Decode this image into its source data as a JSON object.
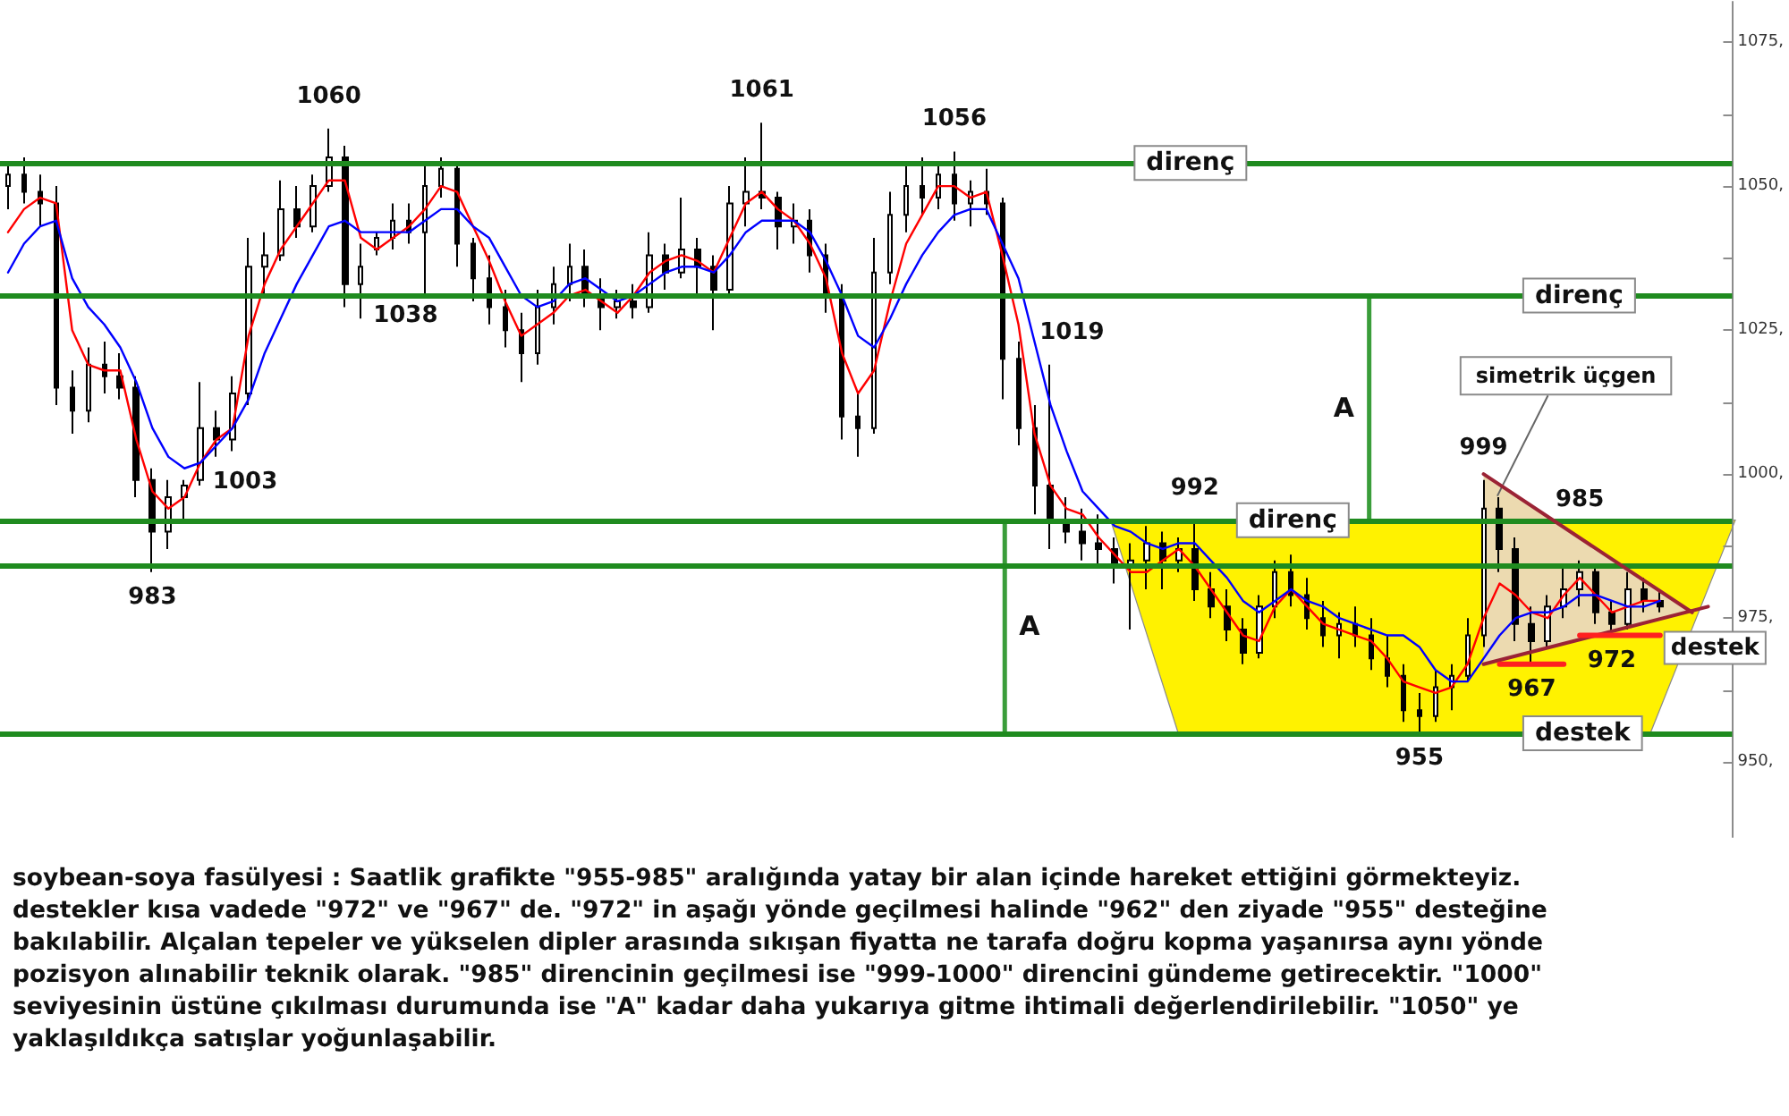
{
  "chart_data": {
    "type": "candlestick",
    "categories": [
      null,
      null,
      null,
      null,
      null,
      null,
      null,
      null,
      null,
      null,
      null,
      null,
      null,
      null,
      null,
      null,
      null,
      null,
      null,
      null,
      null,
      null,
      null,
      null,
      null,
      null,
      null,
      null,
      null,
      null,
      null,
      null,
      null,
      null,
      null,
      null,
      null,
      null,
      null,
      null,
      null,
      null,
      null,
      null,
      null,
      null,
      null,
      null,
      null,
      null,
      null,
      null,
      null,
      null,
      null,
      null,
      null,
      null,
      null,
      null,
      null,
      null,
      null,
      null,
      null,
      null,
      null,
      null,
      null,
      null,
      null,
      null,
      null,
      null,
      null,
      null,
      null,
      null,
      null,
      null,
      null,
      null,
      null,
      null,
      null,
      null,
      null,
      null,
      null,
      null,
      null,
      null,
      null,
      null,
      null,
      null,
      null,
      null,
      null,
      null,
      null,
      null,
      null,
      null,
      null,
      null,
      null,
      null
    ],
    "ohlc": [
      [
        1050,
        1054,
        1046,
        1052
      ],
      [
        1052,
        1055,
        1047,
        1049
      ],
      [
        1049,
        1052,
        1043,
        1047
      ],
      [
        1047,
        1050,
        1012,
        1015
      ],
      [
        1015,
        1018,
        1007,
        1011
      ],
      [
        1011,
        1022,
        1009,
        1019
      ],
      [
        1019,
        1023,
        1014,
        1017
      ],
      [
        1017,
        1021,
        1013,
        1015
      ],
      [
        1015,
        1017,
        996,
        999
      ],
      [
        999,
        1001,
        983,
        990
      ],
      [
        990,
        999,
        987,
        996
      ],
      [
        996,
        999,
        992,
        998
      ],
      [
        999,
        1016,
        998,
        1008
      ],
      [
        1008,
        1011,
        1003,
        1006
      ],
      [
        1006,
        1017,
        1004,
        1014
      ],
      [
        1014,
        1041,
        1012,
        1036
      ],
      [
        1036,
        1042,
        1031,
        1038
      ],
      [
        1038,
        1051,
        1037,
        1046
      ],
      [
        1046,
        1050,
        1041,
        1043
      ],
      [
        1043,
        1052,
        1042,
        1050
      ],
      [
        1050,
        1060,
        1049,
        1055
      ],
      [
        1055,
        1057,
        1029,
        1033
      ],
      [
        1033,
        1040,
        1027,
        1036
      ],
      [
        1039,
        1042,
        1038,
        1041
      ],
      [
        1041,
        1047,
        1039,
        1044
      ],
      [
        1044,
        1047,
        1040,
        1042
      ],
      [
        1042,
        1054,
        1031,
        1050
      ],
      [
        1050,
        1055,
        1048,
        1053
      ],
      [
        1053,
        1054,
        1036,
        1040
      ],
      [
        1040,
        1041,
        1030,
        1034
      ],
      [
        1034,
        1038,
        1026,
        1029
      ],
      [
        1029,
        1032,
        1022,
        1025
      ],
      [
        1025,
        1028,
        1016,
        1021
      ],
      [
        1021,
        1032,
        1019,
        1029
      ],
      [
        1029,
        1036,
        1026,
        1033
      ],
      [
        1033,
        1040,
        1030,
        1036
      ],
      [
        1036,
        1039,
        1029,
        1031
      ],
      [
        1031,
        1034,
        1025,
        1029
      ],
      [
        1029,
        1032,
        1027,
        1030
      ],
      [
        1030,
        1033,
        1027,
        1029
      ],
      [
        1029,
        1042,
        1028,
        1038
      ],
      [
        1038,
        1040,
        1032,
        1035
      ],
      [
        1035,
        1048,
        1034,
        1039
      ],
      [
        1039,
        1041,
        1031,
        1036
      ],
      [
        1036,
        1038,
        1025,
        1032
      ],
      [
        1032,
        1050,
        1031,
        1047
      ],
      [
        1047,
        1055,
        1043,
        1049
      ],
      [
        1049,
        1061,
        1046,
        1048
      ],
      [
        1048,
        1049,
        1039,
        1043
      ],
      [
        1043,
        1047,
        1040,
        1044
      ],
      [
        1044,
        1046,
        1035,
        1038
      ],
      [
        1038,
        1040,
        1028,
        1031
      ],
      [
        1031,
        1033,
        1006,
        1010
      ],
      [
        1010,
        1014,
        1003,
        1008
      ],
      [
        1008,
        1041,
        1007,
        1035
      ],
      [
        1035,
        1049,
        1033,
        1045
      ],
      [
        1045,
        1054,
        1042,
        1050
      ],
      [
        1050,
        1055,
        1045,
        1048
      ],
      [
        1048,
        1054,
        1046,
        1052
      ],
      [
        1052,
        1056,
        1044,
        1047
      ],
      [
        1047,
        1051,
        1043,
        1049
      ],
      [
        1049,
        1053,
        1045,
        1047
      ],
      [
        1047,
        1048,
        1013,
        1020
      ],
      [
        1020,
        1023,
        1005,
        1008
      ],
      [
        1008,
        1012,
        993,
        998
      ],
      [
        998,
        1019,
        987,
        992
      ],
      [
        992,
        996,
        988,
        990
      ],
      [
        990,
        994,
        985,
        988
      ],
      [
        988,
        993,
        984,
        987
      ],
      [
        987,
        989,
        981,
        984
      ],
      [
        984,
        988,
        973,
        985
      ],
      [
        985,
        991,
        980,
        988
      ],
      [
        988,
        990,
        980,
        985
      ],
      [
        985,
        989,
        983,
        987
      ],
      [
        987,
        992,
        978,
        980
      ],
      [
        980,
        983,
        975,
        977
      ],
      [
        977,
        980,
        971,
        973
      ],
      [
        973,
        975,
        967,
        969
      ],
      [
        969,
        979,
        968,
        977
      ],
      [
        977,
        985,
        975,
        983
      ],
      [
        983,
        986,
        977,
        979
      ],
      [
        979,
        982,
        973,
        975
      ],
      [
        975,
        978,
        970,
        972
      ],
      [
        972,
        976,
        968,
        974
      ],
      [
        974,
        977,
        970,
        972
      ],
      [
        972,
        975,
        966,
        968
      ],
      [
        968,
        972,
        963,
        965
      ],
      [
        965,
        967,
        957,
        959
      ],
      [
        959,
        962,
        955,
        958
      ],
      [
        958,
        966,
        957,
        963
      ],
      [
        963,
        967,
        959,
        965
      ],
      [
        965,
        975,
        964,
        972
      ],
      [
        972,
        999,
        970,
        994
      ],
      [
        994,
        996,
        983,
        987
      ],
      [
        987,
        989,
        971,
        974
      ],
      [
        974,
        977,
        967,
        971
      ],
      [
        971,
        979,
        970,
        977
      ],
      [
        977,
        984,
        975,
        980
      ],
      [
        980,
        985,
        977,
        983
      ],
      [
        983,
        984,
        974,
        976
      ],
      [
        976,
        978,
        972,
        974
      ],
      [
        974,
        983,
        973,
        980
      ],
      [
        980,
        982,
        976,
        978
      ],
      [
        978,
        980,
        976,
        977
      ],
      null,
      null,
      null,
      null
    ],
    "color": "#000000",
    "value_labels": [
      null,
      null,
      null,
      null,
      null,
      null,
      null,
      null,
      null,
      "983",
      null,
      null,
      null,
      "1003",
      null,
      null,
      null,
      null,
      null,
      null,
      "1060",
      null,
      null,
      "1038",
      null,
      null,
      null,
      null,
      null,
      null,
      null,
      null,
      null,
      null,
      null,
      null,
      null,
      null,
      null,
      null,
      null,
      null,
      null,
      null,
      null,
      null,
      null,
      "1061",
      null,
      null,
      null,
      null,
      null,
      null,
      null,
      null,
      null,
      null,
      null,
      "1056",
      null,
      null,
      null,
      null,
      null,
      "1019",
      null,
      null,
      null,
      null,
      null,
      null,
      null,
      null,
      "992",
      null,
      null,
      null,
      null,
      null,
      null,
      null,
      null,
      null,
      null,
      null,
      null,
      null,
      "955",
      null,
      null,
      null,
      "999",
      null,
      null,
      "967",
      null,
      null,
      "985",
      null,
      "972",
      null,
      null,
      null,
      null,
      null,
      null,
      null
    ],
    "series": [
      {
        "type": "line",
        "color": "#ff0000",
        "values": [
          1042,
          1046,
          1048,
          1047,
          1025,
          1019,
          1018,
          1018,
          1006,
          997,
          994,
          996,
          1002,
          1006,
          1008,
          1024,
          1033,
          1039,
          1043,
          1047,
          1051,
          1051,
          1041,
          1039,
          1041,
          1043,
          1046,
          1050,
          1049,
          1043,
          1037,
          1030,
          1024,
          1026,
          1028,
          1031,
          1032,
          1030,
          1028,
          1031,
          1035,
          1037,
          1038,
          1037,
          1035,
          1041,
          1047,
          1049,
          1046,
          1044,
          1040,
          1034,
          1021,
          1014,
          1018,
          1030,
          1040,
          1045,
          1050,
          1050,
          1048,
          1049,
          1038,
          1026,
          1007,
          998,
          994,
          993,
          989,
          986,
          983,
          983,
          985,
          987,
          984,
          980,
          976,
          972,
          971,
          977,
          980,
          977,
          974,
          973,
          972,
          971,
          968,
          964,
          963,
          962,
          963,
          967,
          975,
          981,
          979,
          976,
          975,
          979,
          982,
          979,
          976,
          977,
          978,
          978,
          null,
          null,
          null,
          null
        ]
      },
      {
        "type": "line",
        "color": "#0000ff",
        "values": [
          1035,
          1040,
          1043,
          1044,
          1034,
          1029,
          1026,
          1022,
          1016,
          1008,
          1003,
          1001,
          1002,
          1005,
          1008,
          1013,
          1021,
          1027,
          1033,
          1038,
          1043,
          1044,
          1042,
          1042,
          1042,
          1042,
          1044,
          1046,
          1046,
          1043,
          1041,
          1036,
          1031,
          1029,
          1030,
          1033,
          1034,
          1032,
          1030,
          1031,
          1033,
          1035,
          1036,
          1036,
          1035,
          1038,
          1042,
          1044,
          1044,
          1044,
          1042,
          1037,
          1031,
          1024,
          1022,
          1027,
          1033,
          1038,
          1042,
          1045,
          1046,
          1046,
          1040,
          1034,
          1023,
          1012,
          1004,
          997,
          994,
          991,
          990,
          988,
          987,
          988,
          988,
          985,
          982,
          978,
          976,
          978,
          980,
          978,
          977,
          975,
          974,
          973,
          972,
          972,
          970,
          966,
          964,
          964,
          968,
          972,
          975,
          976,
          976,
          977,
          979,
          979,
          978,
          977,
          977,
          978,
          null,
          null,
          null,
          null
        ]
      },
      {
        "type": "line",
        "name": "simetrik üçgen",
        "color": "#9b2335",
        "values": [
          null,
          null,
          null,
          null,
          null,
          null,
          null,
          null,
          null,
          null,
          null,
          null,
          null,
          null,
          null,
          null,
          null,
          null,
          null,
          null,
          null,
          null,
          null,
          null,
          null,
          null,
          null,
          null,
          null,
          null,
          null,
          null,
          null,
          null,
          null,
          null,
          null,
          null,
          null,
          null,
          null,
          null,
          null,
          null,
          null,
          null,
          null,
          null,
          null,
          null,
          null,
          null,
          null,
          null,
          null,
          null,
          null,
          null,
          null,
          null,
          null,
          null,
          null,
          null,
          null,
          null,
          null,
          null,
          null,
          null,
          null,
          null,
          null,
          null,
          null,
          null,
          null,
          null,
          null,
          null,
          null,
          null,
          null,
          null,
          null,
          null,
          null,
          null,
          null,
          null,
          null,
          null,
          1000,
          null,
          null,
          null,
          null,
          null,
          null,
          null,
          null,
          null,
          null,
          null,
          null,
          976,
          null,
          null
        ]
      },
      {
        "type": "line",
        "color": "#9b2335",
        "values": [
          null,
          null,
          null,
          null,
          null,
          null,
          null,
          null,
          null,
          null,
          null,
          null,
          null,
          null,
          null,
          null,
          null,
          null,
          null,
          null,
          null,
          null,
          null,
          null,
          null,
          null,
          null,
          null,
          null,
          null,
          null,
          null,
          null,
          null,
          null,
          null,
          null,
          null,
          null,
          null,
          null,
          null,
          null,
          null,
          null,
          null,
          null,
          null,
          null,
          null,
          null,
          null,
          null,
          null,
          null,
          null,
          null,
          null,
          null,
          null,
          null,
          null,
          null,
          null,
          null,
          null,
          null,
          null,
          null,
          null,
          null,
          null,
          null,
          null,
          null,
          null,
          null,
          null,
          null,
          null,
          null,
          null,
          null,
          null,
          null,
          null,
          null,
          null,
          null,
          null,
          null,
          null,
          967,
          null,
          null,
          null,
          null,
          null,
          null,
          null,
          null,
          null,
          null,
          null,
          null,
          null,
          977,
          null
        ]
      },
      {
        "type": "line",
        "color": "#ff2020",
        "values": [
          null,
          null,
          null,
          null,
          null,
          null,
          null,
          null,
          null,
          null,
          null,
          null,
          null,
          null,
          null,
          null,
          null,
          null,
          null,
          null,
          null,
          null,
          null,
          null,
          null,
          null,
          null,
          null,
          null,
          null,
          null,
          null,
          null,
          null,
          null,
          null,
          null,
          null,
          null,
          null,
          null,
          null,
          null,
          null,
          null,
          null,
          null,
          null,
          null,
          null,
          null,
          null,
          null,
          null,
          null,
          null,
          null,
          null,
          null,
          null,
          null,
          null,
          null,
          null,
          null,
          null,
          null,
          null,
          null,
          null,
          null,
          null,
          null,
          null,
          null,
          null,
          null,
          null,
          null,
          null,
          null,
          null,
          null,
          null,
          null,
          null,
          null,
          null,
          null,
          null,
          null,
          null,
          null,
          967,
          null,
          null,
          null,
          967,
          null,
          null,
          null,
          null,
          null,
          null,
          null,
          null,
          null,
          null
        ]
      },
      {
        "type": "line",
        "name": "destek",
        "color": "#ff2020",
        "values": [
          null,
          null,
          null,
          null,
          null,
          null,
          null,
          null,
          null,
          null,
          null,
          null,
          null,
          null,
          null,
          null,
          null,
          null,
          null,
          null,
          null,
          null,
          null,
          null,
          null,
          null,
          null,
          null,
          null,
          null,
          null,
          null,
          null,
          null,
          null,
          null,
          null,
          null,
          null,
          null,
          null,
          null,
          null,
          null,
          null,
          null,
          null,
          null,
          null,
          null,
          null,
          null,
          null,
          null,
          null,
          null,
          null,
          null,
          null,
          null,
          null,
          null,
          null,
          null,
          null,
          null,
          null,
          null,
          null,
          null,
          null,
          null,
          null,
          null,
          null,
          null,
          null,
          null,
          null,
          null,
          null,
          null,
          null,
          null,
          null,
          null,
          null,
          null,
          null,
          null,
          null,
          null,
          null,
          null,
          null,
          null,
          null,
          null,
          972,
          null,
          null,
          null,
          null,
          972,
          null,
          null,
          null,
          null
        ]
      }
    ],
    "ref_lines": [
      {
        "axis": "y",
        "value": 1054,
        "label": "direnç",
        "color": "#1f8b1f"
      },
      {
        "axis": "y",
        "value": 1031,
        "label": "direnç",
        "color": "#1f8b1f"
      },
      {
        "axis": "y",
        "value": 992,
        "label": "direnç",
        "color": "#1f8b1f"
      },
      {
        "axis": "y",
        "value": 984,
        "color": "#1f8b1f"
      },
      {
        "axis": "y",
        "value": 955,
        "label": "destek",
        "color": "#1f8b1f"
      }
    ],
    "bands": [
      {
        "axis": "y",
        "from": 955,
        "to": 992,
        "color": "#fff200"
      }
    ],
    "ylim": [
      937,
      1082
    ],
    "yticks": [
      {
        "value": 950,
        "label": "950,"
      },
      {
        "value": 962.5,
        "label": null
      },
      {
        "value": 975,
        "label": "975,"
      },
      {
        "value": 987.5,
        "label": null
      },
      {
        "value": 1000,
        "label": "1000,"
      },
      {
        "value": 1012.5,
        "label": null
      },
      {
        "value": 1025,
        "label": "1025,"
      },
      {
        "value": 1037.5,
        "label": null
      },
      {
        "value": 1050,
        "label": "1050,"
      },
      {
        "value": 1062.5,
        "label": null
      },
      {
        "value": 1075,
        "label": "1075,"
      }
    ],
    "tick_labels": "y",
    "annotations": [
      "soybean-soya fasülyesi : Saatlik grafikte \"955-985\" aralığında yatay bir alan içinde hareket ettiğini görmekteyiz.\ndestekler kısa vadede \"972\" ve \"967\" de. \"972\" in aşağı yönde geçilmesi halinde \"962\" den ziyade \"955\" desteğine\nbakılabilir. Alçalan tepeler ve yükselen dipler arasında sıkışan fiyatta ne tarafa doğru kopma yaşanırsa aynı yönde\npozisyon alınabilir teknik olarak. \"985\" direncinin geçilmesi ise \"999-1000\" direncini gündeme getirecektir. \"1000\"\nseviyesinin üstüne çıkılması durumunda ise \"A\" kadar daha yukarıya gitme ihtimali değerlendirilebilir. \"1050\" ye\nyaklaşıldıkça satışlar yoğunlaşabilir.",
      "A",
      "A"
    ]
  }
}
